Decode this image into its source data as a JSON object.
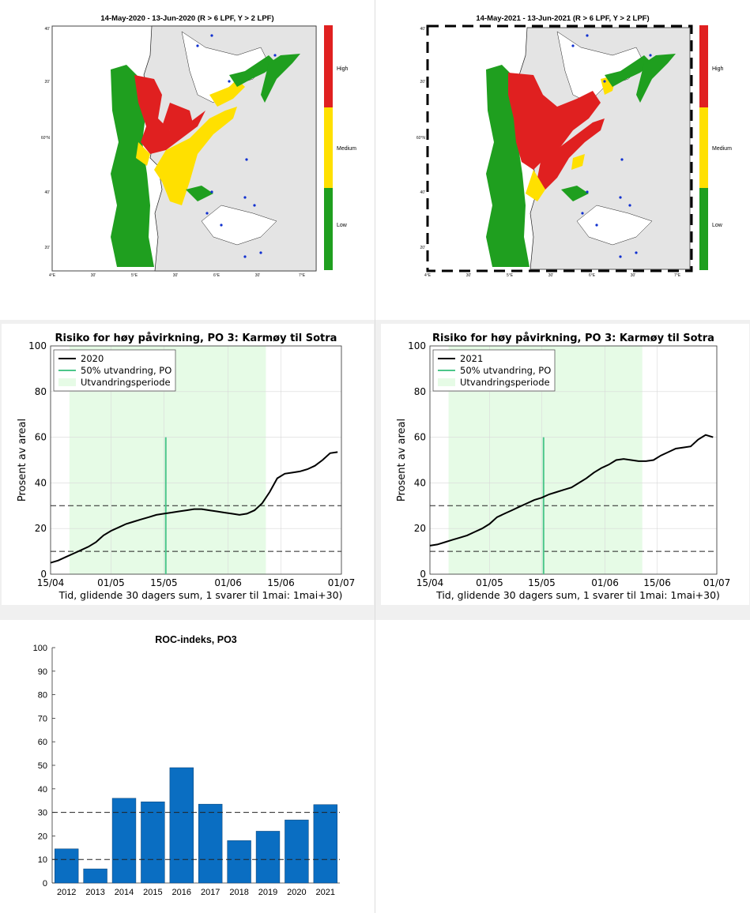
{
  "maps": [
    {
      "title": "14-May-2020  - 13-Jun-2020  (R > 6 LPF, Y > 2 LPF)",
      "colorbar": [
        "High",
        "Medium",
        "Low"
      ],
      "lon_ticks": [
        "4°E",
        "30'",
        "5°E",
        "30'",
        "6°E",
        "30'",
        "7°E"
      ],
      "lat_ticks": [
        "40'",
        "20'",
        "60°N",
        "40'",
        "20'"
      ]
    },
    {
      "title": "14-May-2021  - 13-Jun-2021  (R > 6 LPF, Y > 2 LPF)",
      "colorbar": [
        "High",
        "Medium",
        "Low"
      ],
      "lon_ticks": [
        "4°E",
        "30'",
        "5°E",
        "30'",
        "6°E",
        "30'",
        "7°E"
      ],
      "lat_ticks": [
        "40'",
        "20'",
        "60°N",
        "40'",
        "20'"
      ]
    }
  ],
  "colors": {
    "high": "#e02020",
    "medium": "#ffe000",
    "low": "#1f9f1f",
    "land": "#e4e4e4",
    "bar": "#0a6ec2",
    "period": "#e6fbe6",
    "line50": "#4cc68a"
  },
  "chart_data": [
    {
      "type": "line",
      "title": "Risiko for høy påvirkning, PO 3: Karmøy til Sotra",
      "xlabel": "Tid, glidende 30 dagers sum, 1 svarer til 1mai: 1mai+30)",
      "ylabel": "Prosent av areal",
      "xticks": [
        "15/04",
        "01/05",
        "15/05",
        "01/06",
        "15/06",
        "01/07"
      ],
      "xlim_days": [
        0,
        77
      ],
      "ylim": [
        0,
        100
      ],
      "yticks": [
        0,
        20,
        40,
        60,
        80,
        100
      ],
      "legend": [
        "2020",
        "50% utvandring, PO",
        "Utvandringsperiode"
      ],
      "period_days": [
        5,
        57
      ],
      "line50_day": 30.5,
      "line50_top": 60,
      "hlines": [
        10,
        30
      ],
      "series_x": [
        0,
        2,
        4,
        6,
        8,
        10,
        12,
        14,
        16,
        18,
        20,
        22,
        24,
        26,
        28,
        30,
        32,
        34,
        36,
        38,
        40,
        42,
        44,
        46,
        48,
        50,
        52,
        54,
        56,
        58,
        60,
        62,
        64,
        66,
        68,
        70,
        72,
        74,
        76
      ],
      "series_y": [
        5,
        6,
        7.5,
        9,
        10.5,
        12,
        14,
        17,
        19,
        20.5,
        22,
        23,
        24,
        25,
        26,
        26.5,
        27,
        27.5,
        28,
        28.5,
        28.5,
        28,
        27.5,
        27,
        26.5,
        26,
        26.5,
        28,
        31,
        36,
        42,
        44,
        44.5,
        45,
        46,
        47.5,
        50,
        53,
        53.5
      ]
    },
    {
      "type": "line",
      "title": "Risiko for høy påvirkning, PO 3: Karmøy til Sotra",
      "xlabel": "Tid, glidende 30 dagers sum, 1 svarer til 1mai: 1mai+30)",
      "ylabel": "Prosent av areal",
      "xticks": [
        "15/04",
        "01/05",
        "15/05",
        "01/06",
        "15/06",
        "01/07"
      ],
      "xlim_days": [
        0,
        77
      ],
      "ylim": [
        0,
        100
      ],
      "yticks": [
        0,
        20,
        40,
        60,
        80,
        100
      ],
      "legend": [
        "2021",
        "50% utvandring, PO",
        "Utvandringsperiode"
      ],
      "period_days": [
        5,
        57
      ],
      "line50_day": 30.5,
      "line50_top": 60,
      "hlines": [
        10,
        30
      ],
      "series_x": [
        0,
        2,
        4,
        6,
        8,
        10,
        12,
        14,
        16,
        18,
        20,
        22,
        24,
        26,
        28,
        30,
        32,
        34,
        36,
        38,
        40,
        42,
        44,
        46,
        48,
        50,
        52,
        54,
        56,
        58,
        60,
        62,
        64,
        66,
        68,
        70,
        72,
        74,
        76
      ],
      "series_y": [
        12.5,
        13,
        14,
        15,
        16,
        17,
        18.5,
        20,
        22,
        25,
        26.5,
        28,
        29.5,
        31,
        32.5,
        33.5,
        35,
        36,
        37,
        38,
        40,
        42,
        44.5,
        46.5,
        48,
        50,
        50.5,
        50,
        49.5,
        49.5,
        50,
        52,
        53.5,
        55,
        55.5,
        56,
        59,
        61,
        60
      ]
    },
    {
      "type": "bar",
      "title": "ROC-indeks, PO3",
      "categories": [
        "2012",
        "2013",
        "2014",
        "2015",
        "2016",
        "2017",
        "2018",
        "2019",
        "2020",
        "2021"
      ],
      "values": [
        14.5,
        6,
        36,
        34.5,
        49,
        33.5,
        18,
        22,
        26.8,
        33.3
      ],
      "ylim": [
        0,
        100
      ],
      "yticks": [
        0,
        10,
        20,
        30,
        40,
        50,
        60,
        70,
        80,
        90,
        100
      ],
      "hlines": [
        10,
        30
      ]
    }
  ]
}
